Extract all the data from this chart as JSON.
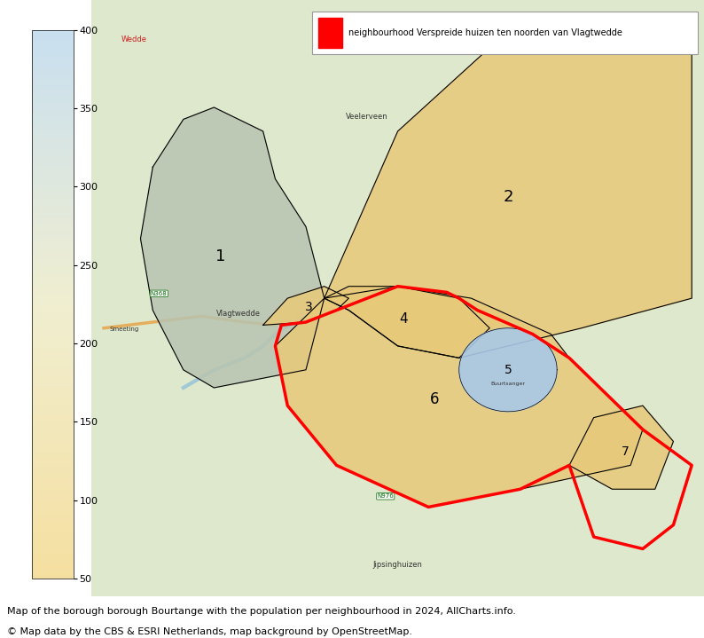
{
  "title": "neighbourhood Verspreide huizen ten noorden van Vlagtwedde",
  "legend_label": "neighbourhood Verspreide huizen ten noorden van Vlagtwedde",
  "colorbar_min": 50,
  "colorbar_max": 400,
  "colorbar_ticks": [
    50,
    100,
    150,
    200,
    250,
    300,
    350,
    400
  ],
  "colorbar_colors_bottom": "#f5dfa0",
  "colorbar_colors_top": "#c8dff0",
  "caption_line1": "Map of the borough borough Bourtange with the population per neighbourhood in 2024, AllCharts.info.",
  "caption_line2": "© Map data by the CBS & ESRI Netherlands, map background by OpenStreetMap.",
  "neighborhood_color": "#f5c842",
  "highlighted_color_red": "#ff0000",
  "region1_label": "1",
  "region2_label": "2",
  "region3_label": "3",
  "region4_label": "4",
  "region5_label": "5",
  "region6_label": "6",
  "region7_label": "7",
  "map_bg_color": "#e8f0e0",
  "fig_width": 7.94,
  "fig_height": 7.19,
  "dpi": 100
}
